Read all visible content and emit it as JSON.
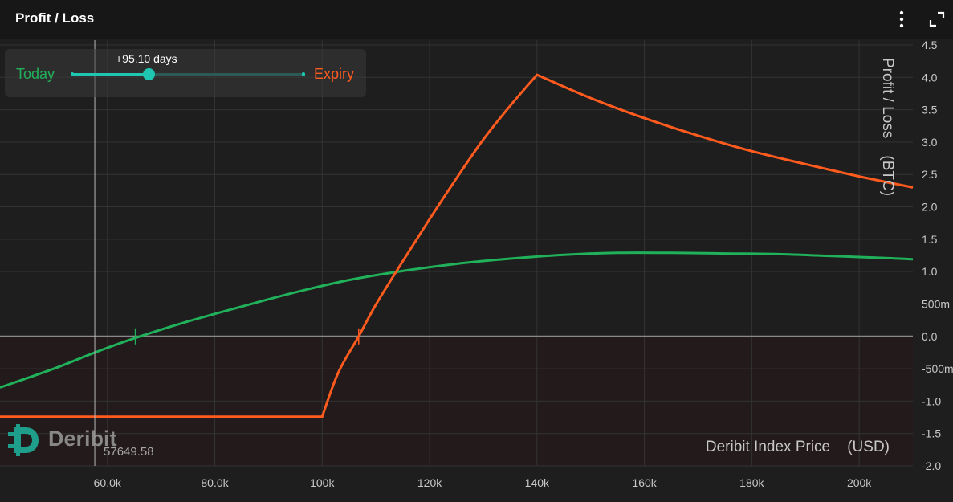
{
  "header": {
    "title": "Profit / Loss",
    "menu_icon": "vertical-ellipsis-icon",
    "expand_icon": "expand-icon"
  },
  "slider": {
    "today_label": "Today",
    "expiry_label": "Expiry",
    "days_label": "+95.10 days",
    "position_fraction": 0.33
  },
  "watermark": {
    "text": "Deribit",
    "icon": "deribit-logo-icon"
  },
  "cursor": {
    "price": 57649.58,
    "label": "57649.58"
  },
  "colors": {
    "background": "#1e1e1e",
    "loss_zone": "#231b1b",
    "today": "#20b15a",
    "expiry": "#ff5b1f",
    "accent": "#1fc6b2",
    "zero_line": "#8a8a8a",
    "grid": "#333333",
    "text": "#c8c8c8"
  },
  "chart_data": {
    "type": "line",
    "xlabel": "Deribit Index Price    (USD)",
    "ylabel": "Profit / Loss    (BTC)",
    "xlim": [
      40000,
      210000
    ],
    "ylim": [
      -2.0,
      4.5
    ],
    "grid": true,
    "x_ticks": [
      {
        "value": 60000,
        "label": "60.0k"
      },
      {
        "value": 80000,
        "label": "80.0k"
      },
      {
        "value": 100000,
        "label": "100k"
      },
      {
        "value": 120000,
        "label": "120k"
      },
      {
        "value": 140000,
        "label": "140k"
      },
      {
        "value": 160000,
        "label": "160k"
      },
      {
        "value": 180000,
        "label": "180k"
      },
      {
        "value": 200000,
        "label": "200k"
      }
    ],
    "y_ticks": [
      {
        "value": 4.5,
        "label": "4.5"
      },
      {
        "value": 4.0,
        "label": "4.0"
      },
      {
        "value": 3.5,
        "label": "3.5"
      },
      {
        "value": 3.0,
        "label": "3.0"
      },
      {
        "value": 2.5,
        "label": "2.5"
      },
      {
        "value": 2.0,
        "label": "2.0"
      },
      {
        "value": 1.5,
        "label": "1.5"
      },
      {
        "value": 1.0,
        "label": "1.0"
      },
      {
        "value": 0.5,
        "label": "500m"
      },
      {
        "value": 0.0,
        "label": "0.0"
      },
      {
        "value": -0.5,
        "label": "-500m"
      },
      {
        "value": -1.0,
        "label": "-1.0"
      },
      {
        "value": -1.5,
        "label": "-1.5"
      },
      {
        "value": -2.0,
        "label": "-2.0"
      }
    ],
    "series": [
      {
        "name": "Today",
        "color": "#20b15a",
        "x": [
          40000,
          50000,
          57650,
          65000,
          75000,
          85000,
          95000,
          105000,
          115000,
          125000,
          135000,
          145000,
          155000,
          165000,
          175000,
          185000,
          195000,
          205000,
          210000
        ],
        "y": [
          -0.79,
          -0.5,
          -0.25,
          -0.03,
          0.23,
          0.46,
          0.68,
          0.87,
          1.01,
          1.12,
          1.2,
          1.26,
          1.29,
          1.29,
          1.28,
          1.27,
          1.24,
          1.21,
          1.19
        ]
      },
      {
        "name": "Expiry",
        "color": "#ff5b1f",
        "x": [
          40000,
          100000,
          103000,
          106800,
          110000,
          115000,
          120000,
          125000,
          130000,
          135000,
          140000,
          150000,
          160000,
          170000,
          180000,
          190000,
          200000,
          210000
        ],
        "y": [
          -1.24,
          -1.24,
          -0.56,
          0.0,
          0.49,
          1.16,
          1.81,
          2.44,
          3.04,
          3.56,
          4.04,
          3.68,
          3.37,
          3.1,
          2.86,
          2.66,
          2.47,
          2.3
        ]
      }
    ],
    "breakeven_markers": [
      {
        "series": "Today",
        "x": 65200
      },
      {
        "series": "Expiry",
        "x": 106800
      }
    ]
  }
}
